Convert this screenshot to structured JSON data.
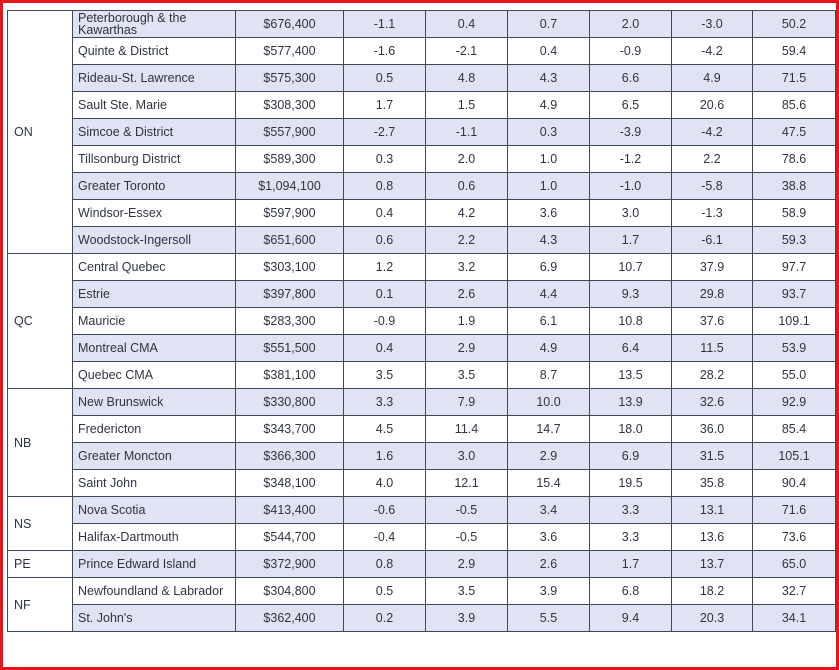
{
  "table": {
    "groups": [
      {
        "province": "ON",
        "rows": [
          {
            "region": "Peterborough & the Kawarthas",
            "price": "$676,400",
            "v1": "-1.1",
            "v2": "0.4",
            "v3": "0.7",
            "v4": "2.0",
            "v5": "-3.0",
            "v6": "50.2"
          },
          {
            "region": "Quinte & District",
            "price": "$577,400",
            "v1": "-1.6",
            "v2": "-2.1",
            "v3": "0.4",
            "v4": "-0.9",
            "v5": "-4.2",
            "v6": "59.4"
          },
          {
            "region": "Rideau-St. Lawrence",
            "price": "$575,300",
            "v1": "0.5",
            "v2": "4.8",
            "v3": "4.3",
            "v4": "6.6",
            "v5": "4.9",
            "v6": "71.5"
          },
          {
            "region": "Sault Ste. Marie",
            "price": "$308,300",
            "v1": "1.7",
            "v2": "1.5",
            "v3": "4.9",
            "v4": "6.5",
            "v5": "20.6",
            "v6": "85.6"
          },
          {
            "region": "Simcoe & District",
            "price": "$557,900",
            "v1": "-2.7",
            "v2": "-1.1",
            "v3": "0.3",
            "v4": "-3.9",
            "v5": "-4.2",
            "v6": "47.5"
          },
          {
            "region": "Tillsonburg District",
            "price": "$589,300",
            "v1": "0.3",
            "v2": "2.0",
            "v3": "1.0",
            "v4": "-1.2",
            "v5": "2.2",
            "v6": "78.6"
          },
          {
            "region": "Greater Toronto",
            "price": "$1,094,100",
            "v1": "0.8",
            "v2": "0.6",
            "v3": "1.0",
            "v4": "-1.0",
            "v5": "-5.8",
            "v6": "38.8"
          },
          {
            "region": "Windsor-Essex",
            "price": "$597,900",
            "v1": "0.4",
            "v2": "4.2",
            "v3": "3.6",
            "v4": "3.0",
            "v5": "-1.3",
            "v6": "58.9"
          },
          {
            "region": "Woodstock-Ingersoll",
            "price": "$651,600",
            "v1": "0.6",
            "v2": "2.2",
            "v3": "4.3",
            "v4": "1.7",
            "v5": "-6.1",
            "v6": "59.3"
          }
        ]
      },
      {
        "province": "QC",
        "rows": [
          {
            "region": "Central Quebec",
            "price": "$303,100",
            "v1": "1.2",
            "v2": "3.2",
            "v3": "6.9",
            "v4": "10.7",
            "v5": "37.9",
            "v6": "97.7"
          },
          {
            "region": "Estrie",
            "price": "$397,800",
            "v1": "0.1",
            "v2": "2.6",
            "v3": "4.4",
            "v4": "9.3",
            "v5": "29.8",
            "v6": "93.7"
          },
          {
            "region": "Mauricie",
            "price": "$283,300",
            "v1": "-0.9",
            "v2": "1.9",
            "v3": "6.1",
            "v4": "10.8",
            "v5": "37.6",
            "v6": "109.1"
          },
          {
            "region": "Montreal CMA",
            "price": "$551,500",
            "v1": "0.4",
            "v2": "2.9",
            "v3": "4.9",
            "v4": "6.4",
            "v5": "11.5",
            "v6": "53.9"
          },
          {
            "region": "Quebec CMA",
            "price": "$381,100",
            "v1": "3.5",
            "v2": "3.5",
            "v3": "8.7",
            "v4": "13.5",
            "v5": "28.2",
            "v6": "55.0"
          }
        ]
      },
      {
        "province": "NB",
        "rows": [
          {
            "region": "New Brunswick",
            "price": "$330,800",
            "v1": "3.3",
            "v2": "7.9",
            "v3": "10.0",
            "v4": "13.9",
            "v5": "32.6",
            "v6": "92.9"
          },
          {
            "region": "Fredericton",
            "price": "$343,700",
            "v1": "4.5",
            "v2": "11.4",
            "v3": "14.7",
            "v4": "18.0",
            "v5": "36.0",
            "v6": "85.4"
          },
          {
            "region": "Greater Moncton",
            "price": "$366,300",
            "v1": "1.6",
            "v2": "3.0",
            "v3": "2.9",
            "v4": "6.9",
            "v5": "31.5",
            "v6": "105.1"
          },
          {
            "region": "Saint John",
            "price": "$348,100",
            "v1": "4.0",
            "v2": "12.1",
            "v3": "15.4",
            "v4": "19.5",
            "v5": "35.8",
            "v6": "90.4"
          }
        ]
      },
      {
        "province": "NS",
        "rows": [
          {
            "region": "Nova Scotia",
            "price": "$413,400",
            "v1": "-0.6",
            "v2": "-0.5",
            "v3": "3.4",
            "v4": "3.3",
            "v5": "13.1",
            "v6": "71.6"
          },
          {
            "region": "Halifax-Dartmouth",
            "price": "$544,700",
            "v1": "-0.4",
            "v2": "-0.5",
            "v3": "3.6",
            "v4": "3.3",
            "v5": "13.6",
            "v6": "73.6"
          }
        ]
      },
      {
        "province": "PE",
        "rows": [
          {
            "region": "Prince Edward Island",
            "price": "$372,900",
            "v1": "0.8",
            "v2": "2.9",
            "v3": "2.6",
            "v4": "1.7",
            "v5": "13.7",
            "v6": "65.0"
          }
        ]
      },
      {
        "province": "NF",
        "rows": [
          {
            "region": "Newfoundland & Labrador",
            "price": "$304,800",
            "v1": "0.5",
            "v2": "3.5",
            "v3": "3.9",
            "v4": "6.8",
            "v5": "18.2",
            "v6": "32.7"
          },
          {
            "region": "St. John's",
            "price": "$362,400",
            "v1": "0.2",
            "v2": "3.9",
            "v3": "5.5",
            "v4": "9.4",
            "v5": "20.3",
            "v6": "34.1"
          }
        ]
      }
    ]
  }
}
